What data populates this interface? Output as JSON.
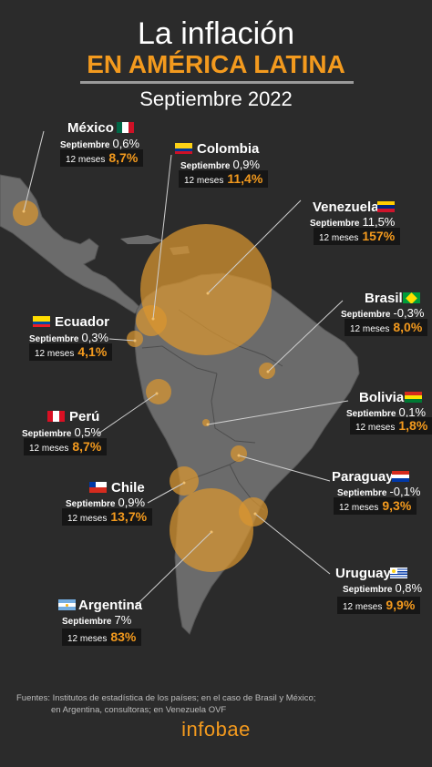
{
  "header": {
    "title_line1": "La inflación",
    "title_line2": "EN AMÉRICA LATINA",
    "subtitle": "Septiembre 2022"
  },
  "labels": {
    "month": "Septiembre",
    "annual": "12 meses"
  },
  "countries": [
    {
      "name": "México",
      "monthly": "0,6%",
      "annual": "8,7%"
    },
    {
      "name": "Colombia",
      "monthly": "0,9%",
      "annual": "11,4%"
    },
    {
      "name": "Venezuela",
      "monthly": "11,5%",
      "annual": "157%"
    },
    {
      "name": "Brasil",
      "monthly": "-0,3%",
      "annual": "8,0%"
    },
    {
      "name": "Ecuador",
      "monthly": "0,3%",
      "annual": "4,1%"
    },
    {
      "name": "Bolivia",
      "monthly": "0,1%",
      "annual": "1,8%"
    },
    {
      "name": "Perú",
      "monthly": "0,5%",
      "annual": "8,7%"
    },
    {
      "name": "Paraguay",
      "monthly": "-0,1%",
      "annual": "9,3%"
    },
    {
      "name": "Chile",
      "monthly": "0,9%",
      "annual": "13,7%"
    },
    {
      "name": "Uruguay",
      "monthly": "0,8%",
      "annual": "9,9%"
    },
    {
      "name": "Argentina",
      "monthly": "7%",
      "annual": "83%"
    }
  ],
  "colors": {
    "background": "#2b2b2b",
    "land": "#6b6b6b",
    "accent": "#f39a1e",
    "bubble": "#d9962f"
  },
  "footer": {
    "sources_line1": "Fuentes: Institutos de estadística de los países; en el caso de Brasil y México;",
    "sources_line2": "en Argentina, consultoras; en Venezuela OVF",
    "logo": "infobae"
  }
}
